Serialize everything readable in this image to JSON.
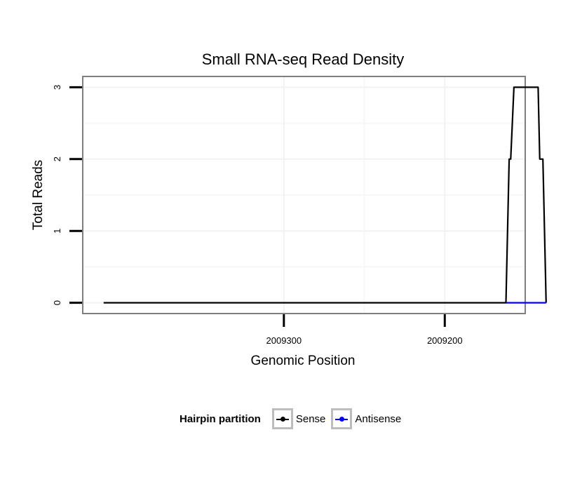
{
  "chart_data": {
    "type": "line",
    "title": "Small RNA-seq Read Density",
    "xlabel": "Genomic Position",
    "ylabel": "Total Reads",
    "x_reversed": true,
    "xlim": [
      2009425,
      2009150
    ],
    "ylim": [
      -0.15,
      3.15
    ],
    "x_ticks": [
      2009300,
      2009200
    ],
    "x_tick_labels": [
      "2009300",
      "2009200"
    ],
    "y_ticks": [
      0,
      1,
      2,
      3
    ],
    "y_tick_labels": [
      "0",
      "1",
      "2",
      "3"
    ],
    "grid": true,
    "legend_position": "bottom",
    "series": [
      {
        "name": "Sense",
        "color": "#000000",
        "x": [
          2009412,
          2009162,
          2009160,
          2009159,
          2009157,
          2009142,
          2009141,
          2009139,
          2009137
        ],
        "y": [
          0,
          0,
          2,
          2,
          3,
          3,
          2,
          2,
          0
        ]
      },
      {
        "name": "Antisense",
        "color": "#0000ff",
        "x": [
          2009162,
          2009137
        ],
        "y": [
          0,
          0
        ]
      }
    ]
  },
  "legend": {
    "title": "Hairpin partition",
    "items": [
      {
        "label": "Sense",
        "color": "#000000"
      },
      {
        "label": "Antisense",
        "color": "#0000ff"
      }
    ]
  }
}
